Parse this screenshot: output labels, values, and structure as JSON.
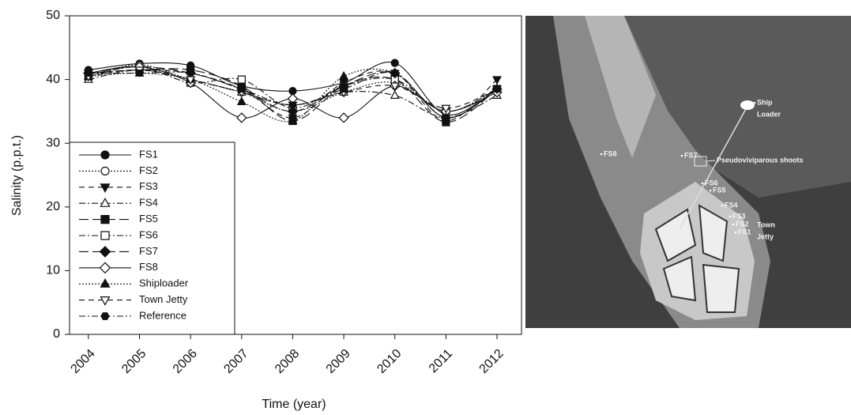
{
  "chart_data": {
    "type": "line",
    "y_label": "Salinity (p.p.t.)",
    "x_label": "Time (year)",
    "x": [
      2004,
      2005,
      2006,
      2007,
      2008,
      2009,
      2010,
      2011,
      2012
    ],
    "xlim": [
      2003.63,
      2012.48
    ],
    "xticks": [
      2004,
      2005,
      2006,
      2007,
      2008,
      2009,
      2010,
      2011,
      2012
    ],
    "ylim": [
      0,
      50
    ],
    "yticks": [
      0,
      10,
      20,
      30,
      40,
      50
    ],
    "legend": "lower left",
    "series": [
      {
        "name": "FS1",
        "color": "#111111",
        "dash": "solid",
        "marker": "circle",
        "filled": true,
        "values": [
          41.5,
          42.5,
          42.2,
          39,
          38.2,
          39.5,
          42.6,
          34.5,
          38.5
        ]
      },
      {
        "name": "FS2",
        "color": "#111111",
        "dash": "dotted",
        "marker": "circle",
        "filled": false,
        "values": [
          40.5,
          42.3,
          40,
          38,
          35,
          38,
          39.5,
          35,
          38.5
        ]
      },
      {
        "name": "FS3",
        "color": "#111111",
        "dash": "dashed",
        "marker": "triangle-down",
        "filled": true,
        "values": [
          41,
          41.5,
          41,
          38.5,
          34,
          39.5,
          41,
          33.5,
          40
        ]
      },
      {
        "name": "FS4",
        "color": "#111111",
        "dash": "dashdot",
        "marker": "triangle-up",
        "filled": false,
        "values": [
          40,
          41.5,
          40,
          38,
          36,
          38,
          37.5,
          34,
          37.5
        ]
      },
      {
        "name": "FS5",
        "color": "#111111",
        "dash": "longdash",
        "marker": "square",
        "filled": true,
        "values": [
          41,
          41.5,
          41.5,
          39,
          33.5,
          39,
          40,
          33.3,
          38.5
        ]
      },
      {
        "name": "FS6",
        "color": "#111111",
        "dash": "dashdot",
        "marker": "square",
        "filled": false,
        "values": [
          40.5,
          42,
          39.5,
          40,
          35.5,
          39,
          40,
          35,
          38.5
        ]
      },
      {
        "name": "FS7",
        "color": "#111111",
        "dash": "longdash",
        "marker": "diamond",
        "filled": true,
        "values": [
          41,
          42,
          41,
          38.5,
          35,
          39,
          41,
          34,
          38.5
        ]
      },
      {
        "name": "FS8",
        "color": "#111111",
        "dash": "solid",
        "marker": "diamond",
        "filled": false,
        "values": [
          41,
          42,
          39.5,
          34,
          37,
          34,
          39,
          35,
          38
        ]
      },
      {
        "name": "Shiploader",
        "color": "#111111",
        "dash": "dotted",
        "marker": "triangle-up",
        "filled": true,
        "values": [
          40.5,
          41,
          40,
          36.5,
          33.5,
          40.5,
          41,
          34,
          38.5
        ]
      },
      {
        "name": "Town Jetty",
        "color": "#111111",
        "dash": "dashed",
        "marker": "triangle-down",
        "filled": false,
        "values": [
          40.5,
          41.5,
          40,
          38,
          36,
          38,
          39,
          35.5,
          38.5
        ]
      },
      {
        "name": "Reference",
        "color": "#111111",
        "dash": "dashdot",
        "marker": "hexagon",
        "filled": true,
        "values": [
          41,
          41,
          41,
          38.5,
          36,
          38.5,
          41,
          34,
          38.5
        ]
      }
    ]
  },
  "map": {
    "labels": [
      {
        "lines": [
          "Ship",
          "Loader"
        ]
      },
      {
        "lines": [
          "FS8"
        ]
      },
      {
        "lines": [
          "FS7"
        ]
      },
      {
        "lines": [
          "Pseudoviviparous shoots"
        ]
      },
      {
        "lines": [
          "FS6"
        ]
      },
      {
        "lines": [
          "FS5"
        ]
      },
      {
        "lines": [
          "FS4"
        ]
      },
      {
        "lines": [
          "FS3"
        ]
      },
      {
        "lines": [
          "FS2"
        ]
      },
      {
        "lines": [
          "FS1"
        ]
      },
      {
        "lines": [
          "Town",
          "Jetty"
        ]
      }
    ]
  }
}
